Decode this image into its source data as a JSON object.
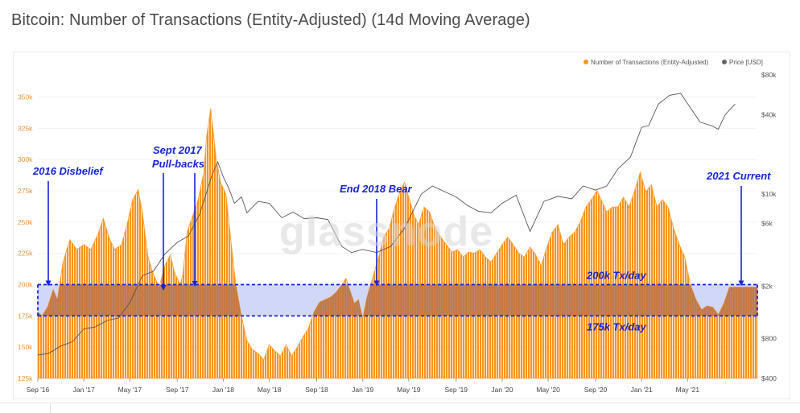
{
  "page": {
    "title": "Bitcoin: Number of Transactions (Entity-Adjusted) (14d Moving Average)"
  },
  "colors": {
    "tx": "#f7931a",
    "price": "#555555",
    "band": "#1524d6",
    "band_fill": "#c9d0f7",
    "annot": "#1524d6"
  },
  "chart_data": {
    "type": "area",
    "title": "Bitcoin: Number of Transactions (Entity-Adjusted) (14d Moving Average)",
    "watermark": "glassnode",
    "legend": {
      "position": "top-right",
      "items": [
        {
          "name": "Number of Transactions (Entity-Adjusted)",
          "color": "#f7931a"
        },
        {
          "name": "Price [USD]",
          "color": "#666666"
        }
      ]
    },
    "x_axis": {
      "start": 2016.67,
      "end": 2021.83,
      "ticks": [
        {
          "label": "Sep '16",
          "t": 2016.67
        },
        {
          "label": "Jan '17",
          "t": 2017.0
        },
        {
          "label": "May '17",
          "t": 2017.33
        },
        {
          "label": "Sep '17",
          "t": 2017.67
        },
        {
          "label": "Jan '18",
          "t": 2018.0
        },
        {
          "label": "May '18",
          "t": 2018.33
        },
        {
          "label": "Sep '18",
          "t": 2018.67
        },
        {
          "label": "Jan '19",
          "t": 2019.0
        },
        {
          "label": "May '19",
          "t": 2019.33
        },
        {
          "label": "Sep '19",
          "t": 2019.67
        },
        {
          "label": "Jan '20",
          "t": 2020.0
        },
        {
          "label": "May '20",
          "t": 2020.33
        },
        {
          "label": "Sep '20",
          "t": 2020.67
        },
        {
          "label": "Jan '21",
          "t": 2021.0
        },
        {
          "label": "May '21",
          "t": 2021.33
        }
      ]
    },
    "y_left": {
      "label": "Number of Transactions (Entity-Adjusted)",
      "min": 125000,
      "max": 360000,
      "ticks": [
        {
          "label": "125k",
          "v": 125000
        },
        {
          "label": "150k",
          "v": 150000
        },
        {
          "label": "175k",
          "v": 175000
        },
        {
          "label": "200k",
          "v": 200000
        },
        {
          "label": "225k",
          "v": 225000
        },
        {
          "label": "250k",
          "v": 250000
        },
        {
          "label": "275k",
          "v": 275000
        },
        {
          "label": "300k",
          "v": 300000
        },
        {
          "label": "325k",
          "v": 325000
        },
        {
          "label": "350k",
          "v": 350000
        }
      ]
    },
    "y_right": {
      "label": "Price [USD]",
      "scale": "log",
      "min": 400,
      "max": 80000,
      "ticks": [
        {
          "label": "$400",
          "v": 400
        },
        {
          "label": "$800",
          "v": 800
        },
        {
          "label": "$2k",
          "v": 2000
        },
        {
          "label": "$6k",
          "v": 6000
        },
        {
          "label": "$10k",
          "v": 10000
        },
        {
          "label": "$40k",
          "v": 40000
        },
        {
          "label": "$80k",
          "v": 80000
        }
      ]
    },
    "series": [
      {
        "name": "Number of Transactions (Entity-Adjusted)",
        "axis": "left",
        "points": [
          [
            2016.67,
            178000
          ],
          [
            2016.7,
            175000
          ],
          [
            2016.74,
            182000
          ],
          [
            2016.78,
            196000
          ],
          [
            2016.81,
            188000
          ],
          [
            2016.85,
            218000
          ],
          [
            2016.9,
            236000
          ],
          [
            2016.95,
            228000
          ],
          [
            2017.0,
            232000
          ],
          [
            2017.05,
            228000
          ],
          [
            2017.1,
            240000
          ],
          [
            2017.14,
            253000
          ],
          [
            2017.18,
            238000
          ],
          [
            2017.22,
            228000
          ],
          [
            2017.27,
            232000
          ],
          [
            2017.31,
            248000
          ],
          [
            2017.35,
            268000
          ],
          [
            2017.39,
            276000
          ],
          [
            2017.42,
            258000
          ],
          [
            2017.46,
            222000
          ],
          [
            2017.5,
            208000
          ],
          [
            2017.54,
            198000
          ],
          [
            2017.58,
            215000
          ],
          [
            2017.62,
            224000
          ],
          [
            2017.65,
            210000
          ],
          [
            2017.69,
            200000
          ],
          [
            2017.71,
            208000
          ],
          [
            2017.74,
            242000
          ],
          [
            2017.78,
            255000
          ],
          [
            2017.82,
            268000
          ],
          [
            2017.86,
            290000
          ],
          [
            2017.88,
            318000
          ],
          [
            2017.91,
            341000
          ],
          [
            2017.95,
            300000
          ],
          [
            2017.98,
            282000
          ],
          [
            2018.02,
            272000
          ],
          [
            2018.05,
            240000
          ],
          [
            2018.09,
            200000
          ],
          [
            2018.13,
            175000
          ],
          [
            2018.17,
            155000
          ],
          [
            2018.21,
            148000
          ],
          [
            2018.25,
            145000
          ],
          [
            2018.29,
            140000
          ],
          [
            2018.33,
            152000
          ],
          [
            2018.37,
            147000
          ],
          [
            2018.41,
            143000
          ],
          [
            2018.45,
            152000
          ],
          [
            2018.49,
            143000
          ],
          [
            2018.53,
            150000
          ],
          [
            2018.57,
            158000
          ],
          [
            2018.61,
            165000
          ],
          [
            2018.65,
            178000
          ],
          [
            2018.69,
            186000
          ],
          [
            2018.73,
            188000
          ],
          [
            2018.77,
            190000
          ],
          [
            2018.81,
            194000
          ],
          [
            2018.85,
            200000
          ],
          [
            2018.88,
            205000
          ],
          [
            2018.91,
            195000
          ],
          [
            2018.94,
            185000
          ],
          [
            2018.97,
            188000
          ],
          [
            2019.0,
            173000
          ],
          [
            2019.03,
            190000
          ],
          [
            2019.07,
            205000
          ],
          [
            2019.11,
            220000
          ],
          [
            2019.15,
            238000
          ],
          [
            2019.19,
            245000
          ],
          [
            2019.23,
            262000
          ],
          [
            2019.27,
            275000
          ],
          [
            2019.3,
            282000
          ],
          [
            2019.33,
            270000
          ],
          [
            2019.37,
            255000
          ],
          [
            2019.4,
            248000
          ],
          [
            2019.44,
            262000
          ],
          [
            2019.48,
            258000
          ],
          [
            2019.52,
            245000
          ],
          [
            2019.56,
            238000
          ],
          [
            2019.6,
            232000
          ],
          [
            2019.64,
            226000
          ],
          [
            2019.68,
            228000
          ],
          [
            2019.72,
            222000
          ],
          [
            2019.76,
            226000
          ],
          [
            2019.8,
            225000
          ],
          [
            2019.84,
            228000
          ],
          [
            2019.88,
            222000
          ],
          [
            2019.92,
            218000
          ],
          [
            2019.96,
            225000
          ],
          [
            2020.0,
            232000
          ],
          [
            2020.04,
            238000
          ],
          [
            2020.08,
            232000
          ],
          [
            2020.12,
            225000
          ],
          [
            2020.16,
            222000
          ],
          [
            2020.2,
            230000
          ],
          [
            2020.24,
            224000
          ],
          [
            2020.28,
            215000
          ],
          [
            2020.32,
            230000
          ],
          [
            2020.36,
            242000
          ],
          [
            2020.4,
            248000
          ],
          [
            2020.44,
            232000
          ],
          [
            2020.48,
            238000
          ],
          [
            2020.52,
            242000
          ],
          [
            2020.56,
            250000
          ],
          [
            2020.6,
            262000
          ],
          [
            2020.64,
            268000
          ],
          [
            2020.68,
            275000
          ],
          [
            2020.71,
            268000
          ],
          [
            2020.75,
            258000
          ],
          [
            2020.79,
            262000
          ],
          [
            2020.83,
            262000
          ],
          [
            2020.87,
            270000
          ],
          [
            2020.91,
            262000
          ],
          [
            2020.95,
            275000
          ],
          [
            2020.99,
            290000
          ],
          [
            2021.03,
            274000
          ],
          [
            2021.07,
            280000
          ],
          [
            2021.11,
            262000
          ],
          [
            2021.15,
            268000
          ],
          [
            2021.19,
            262000
          ],
          [
            2021.23,
            245000
          ],
          [
            2021.27,
            232000
          ],
          [
            2021.31,
            222000
          ],
          [
            2021.35,
            200000
          ],
          [
            2021.39,
            188000
          ],
          [
            2021.43,
            180000
          ],
          [
            2021.47,
            183000
          ],
          [
            2021.51,
            182000
          ],
          [
            2021.55,
            176000
          ],
          [
            2021.59,
            185000
          ],
          [
            2021.63,
            198000
          ]
        ]
      },
      {
        "name": "Price [USD]",
        "axis": "right",
        "points": [
          [
            2016.67,
            600
          ],
          [
            2016.75,
            620
          ],
          [
            2016.83,
            700
          ],
          [
            2016.92,
            760
          ],
          [
            2017.0,
            950
          ],
          [
            2017.08,
            980
          ],
          [
            2017.17,
            1100
          ],
          [
            2017.25,
            1150
          ],
          [
            2017.33,
            1500
          ],
          [
            2017.42,
            2400
          ],
          [
            2017.5,
            2600
          ],
          [
            2017.58,
            3500
          ],
          [
            2017.67,
            4300
          ],
          [
            2017.75,
            4800
          ],
          [
            2017.83,
            7000
          ],
          [
            2017.92,
            14000
          ],
          [
            2017.96,
            17500
          ],
          [
            2018.0,
            13500
          ],
          [
            2018.04,
            11000
          ],
          [
            2018.08,
            8500
          ],
          [
            2018.13,
            9500
          ],
          [
            2018.17,
            7200
          ],
          [
            2018.25,
            8800
          ],
          [
            2018.33,
            8500
          ],
          [
            2018.42,
            6600
          ],
          [
            2018.5,
            7300
          ],
          [
            2018.58,
            6500
          ],
          [
            2018.67,
            6600
          ],
          [
            2018.75,
            6400
          ],
          [
            2018.85,
            4000
          ],
          [
            2018.92,
            3600
          ],
          [
            2019.0,
            3800
          ],
          [
            2019.1,
            3600
          ],
          [
            2019.2,
            4000
          ],
          [
            2019.3,
            5500
          ],
          [
            2019.42,
            10000
          ],
          [
            2019.5,
            11500
          ],
          [
            2019.58,
            10500
          ],
          [
            2019.67,
            9500
          ],
          [
            2019.75,
            8200
          ],
          [
            2019.83,
            7400
          ],
          [
            2019.92,
            7200
          ],
          [
            2020.0,
            8500
          ],
          [
            2020.1,
            9800
          ],
          [
            2020.2,
            5200
          ],
          [
            2020.3,
            8800
          ],
          [
            2020.4,
            9600
          ],
          [
            2020.5,
            9200
          ],
          [
            2020.58,
            11500
          ],
          [
            2020.67,
            10700
          ],
          [
            2020.75,
            11500
          ],
          [
            2020.83,
            15500
          ],
          [
            2020.92,
            19000
          ],
          [
            2021.0,
            32000
          ],
          [
            2021.05,
            33000
          ],
          [
            2021.12,
            48000
          ],
          [
            2021.2,
            56000
          ],
          [
            2021.28,
            58000
          ],
          [
            2021.35,
            45000
          ],
          [
            2021.42,
            35000
          ],
          [
            2021.5,
            33000
          ],
          [
            2021.55,
            31000
          ],
          [
            2021.6,
            40000
          ],
          [
            2021.67,
            48000
          ]
        ]
      }
    ],
    "band": {
      "low": 175000,
      "high": 200000,
      "label_low": "175k Tx/day",
      "label_high": "200k Tx/day"
    },
    "annotations": [
      {
        "label": "2016 Disbelief",
        "t": 2016.72
      },
      {
        "label": "Sept 2017",
        "label2": "Pull-backs"
      },
      {
        "label": "End 2018 Bear",
        "t": 2018.9
      },
      {
        "label": "2021 Current",
        "t": 2021.6
      }
    ]
  }
}
